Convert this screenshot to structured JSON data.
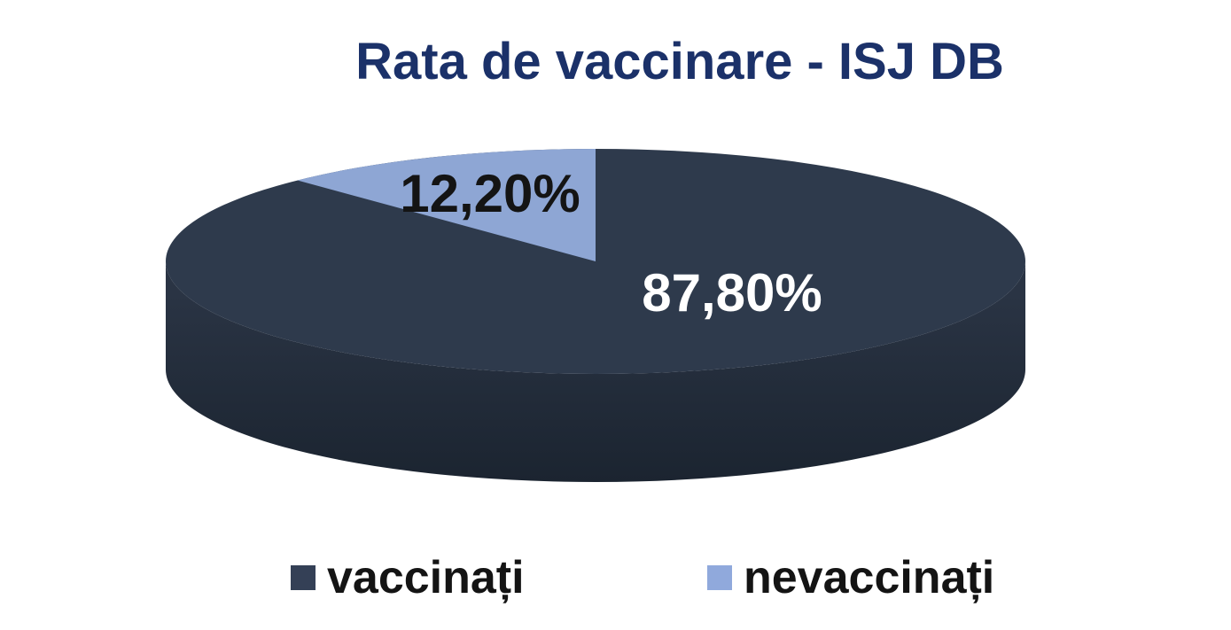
{
  "chart_data": {
    "type": "pie",
    "title": "Rata de vaccinare - ISJ DB",
    "categories": [
      "vaccinați",
      "nevaccinați"
    ],
    "values": [
      87.8,
      12.2
    ],
    "display_labels": [
      "87,80%",
      "12,20%"
    ],
    "colors": [
      "#2E3A4C",
      "#8EA6D4"
    ],
    "effect": "3d",
    "legend_position": "bottom",
    "style": {
      "title_color": "#1B3169",
      "label_colors": [
        "#FFFFFF",
        "#141414"
      ],
      "legend_text_color": "#141414",
      "legend_swatch_colors": [
        "#344056",
        "#90A9DC"
      ],
      "side_gradient": [
        "#2A3444",
        "#1B2430"
      ],
      "background": "#FFFFFF"
    }
  }
}
